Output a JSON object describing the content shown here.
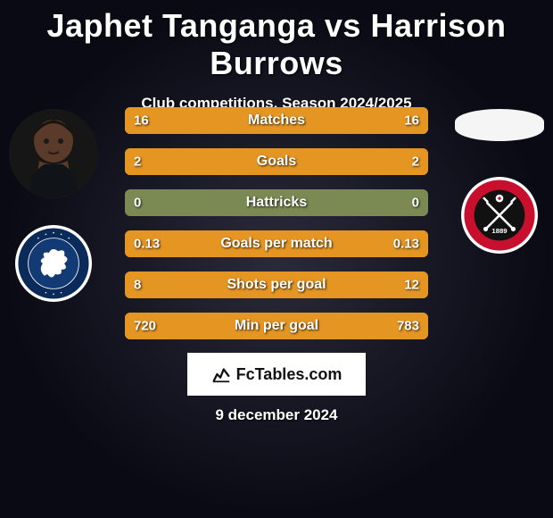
{
  "title": "Japhet Tanganga vs Harrison Burrows",
  "subtitle": "Club competitions, Season 2024/2025",
  "date": "9 december 2024",
  "brand": "FcTables.com",
  "colors": {
    "bar_bg": "#7a8a52",
    "left_fill": "#e59522",
    "right_fill": "#e59522",
    "text": "#ffffff"
  },
  "player_left": {
    "name": "Japhet Tanganga",
    "photo_bg": "#1a1a1a",
    "skin": "#5a3a28",
    "hair": "#1a1410"
  },
  "player_right": {
    "name": "Harrison Burrows",
    "photo_bg": "#f5f5f5"
  },
  "club_left": {
    "name": "Millwall Football Club",
    "outer": "#ffffff",
    "ring": "#0a2a5a",
    "inner": "#123a74",
    "lion": "#ffffff"
  },
  "club_right": {
    "name": "Sheffield United F.C.",
    "outer": "#ffffff",
    "ring": "#c8102e",
    "inner": "#111111",
    "swords": "#ffffff",
    "rose": "#ffffff",
    "year": "1889"
  },
  "bars": [
    {
      "label": "Matches",
      "left_val": "16",
      "right_val": "16",
      "left_pct": 50,
      "right_pct": 50
    },
    {
      "label": "Goals",
      "left_val": "2",
      "right_val": "2",
      "left_pct": 50,
      "right_pct": 50
    },
    {
      "label": "Hattricks",
      "left_val": "0",
      "right_val": "0",
      "left_pct": 0,
      "right_pct": 0
    },
    {
      "label": "Goals per match",
      "left_val": "0.13",
      "right_val": "0.13",
      "left_pct": 50,
      "right_pct": 50
    },
    {
      "label": "Shots per goal",
      "left_val": "8",
      "right_val": "12",
      "left_pct": 40,
      "right_pct": 60
    },
    {
      "label": "Min per goal",
      "left_val": "720",
      "right_val": "783",
      "left_pct": 48,
      "right_pct": 52
    }
  ]
}
